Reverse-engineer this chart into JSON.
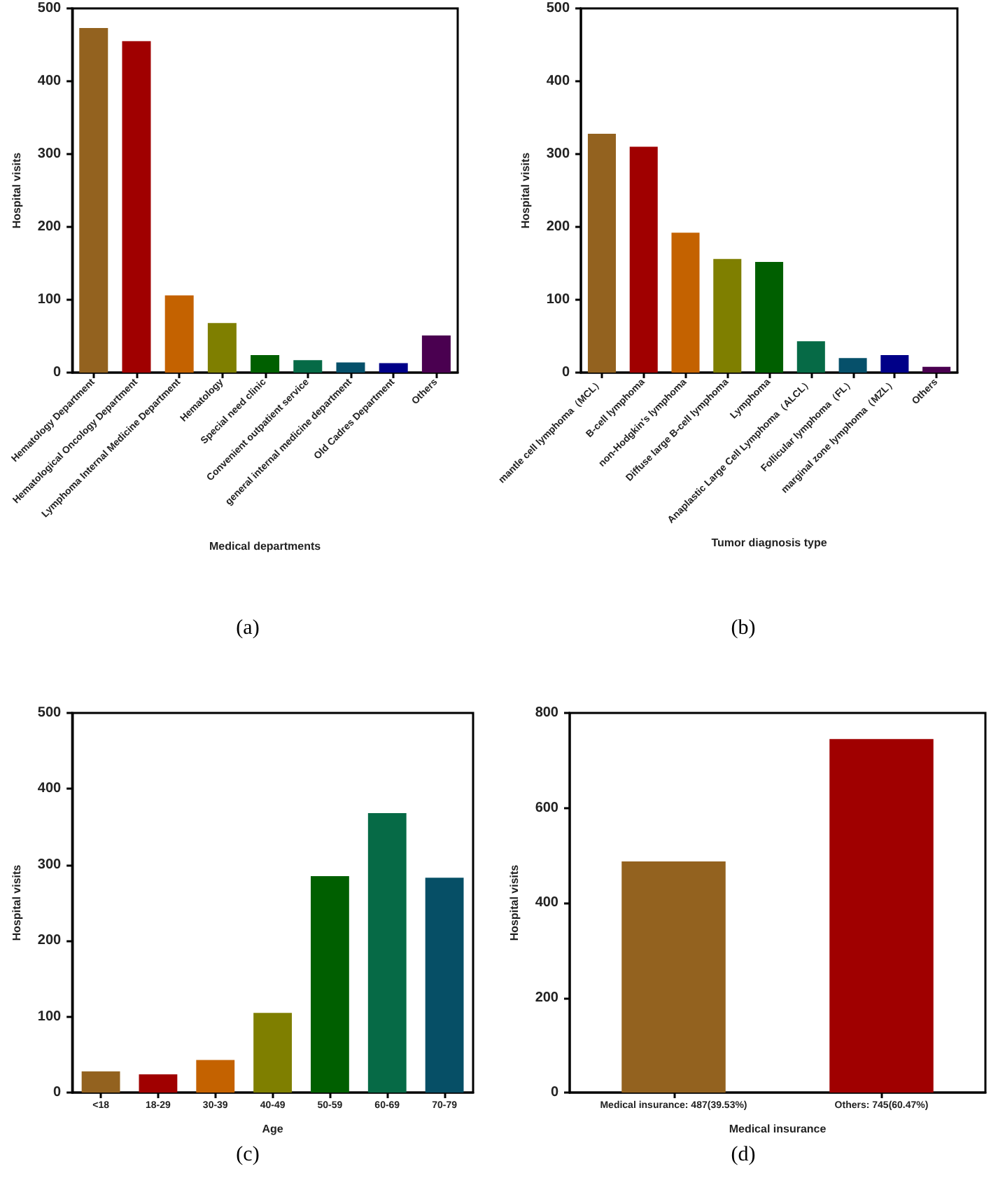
{
  "chart_data": [
    {
      "type": "bar",
      "xlabel": "Medical departments",
      "ylabel": "Hospital visits",
      "annotations": [
        "(a)"
      ],
      "categories": [
        "Hematology Department",
        "Hematological Oncology Department",
        "Lymphoma Internal Medicine Department",
        "Hematology",
        "Special need clinic",
        "Convenient outpatient service",
        "general internal medicine department",
        "Old Cadres Department",
        "Others"
      ],
      "values": [
        473,
        455,
        106,
        68,
        24,
        17,
        14,
        13,
        51
      ],
      "colors": [
        "#93621f",
        "#a00000",
        "#c46200",
        "#7f7f00",
        "#005f00",
        "#066a46",
        "#06506a",
        "#000088",
        "#4a0050"
      ],
      "ylim": [
        0,
        500
      ],
      "yticks": [
        0,
        100,
        200,
        300,
        400,
        500
      ],
      "grid": false
    },
    {
      "type": "bar",
      "xlabel": "Tumor diagnosis type",
      "ylabel": "Hospital visits",
      "annotations": [
        "(b)"
      ],
      "categories": [
        "mantle cell lymphoma（MCL）",
        "B-cell lymphoma",
        "non-Hodgkin's lymphoma",
        "Diffuse large B-cell lymphoma",
        "Lymphoma",
        "Anaplastic Large Cell Lymphoma（ALCL）",
        "Follicular lymphoma（FL）",
        "marginal zone lymphoma（MZL）",
        "Others"
      ],
      "values": [
        328,
        310,
        192,
        156,
        152,
        43,
        20,
        24,
        8
      ],
      "colors": [
        "#93621f",
        "#a00000",
        "#c46200",
        "#7f7f00",
        "#005f00",
        "#066a46",
        "#06506a",
        "#000088",
        "#4a0050"
      ],
      "ylim": [
        0,
        500
      ],
      "yticks": [
        0,
        100,
        200,
        300,
        400,
        500
      ],
      "grid": false
    },
    {
      "type": "bar",
      "xlabel": "Age",
      "ylabel": "Hospital visits",
      "annotations": [
        "(c)"
      ],
      "categories": [
        "<18",
        "18-29",
        "30-39",
        "40-49",
        "50-59",
        "60-69",
        "70-79"
      ],
      "values": [
        28,
        24,
        43,
        105,
        285,
        368,
        283
      ],
      "colors": [
        "#93621f",
        "#a00000",
        "#c46200",
        "#7f7f00",
        "#005f00",
        "#066a46",
        "#064f66"
      ],
      "ylim": [
        0,
        500
      ],
      "yticks": [
        0,
        100,
        200,
        300,
        400,
        500
      ],
      "grid": false
    },
    {
      "type": "bar",
      "xlabel": "Medical insurance",
      "ylabel": "Hospital visits",
      "annotations": [
        "(d)"
      ],
      "categories": [
        "Medical insurance: 487(39.53%)",
        "Others: 745(60.47%)"
      ],
      "values": [
        487,
        745
      ],
      "colors": [
        "#93621f",
        "#a00000"
      ],
      "ylim": [
        0,
        800
      ],
      "yticks": [
        0,
        200,
        400,
        600,
        800
      ],
      "grid": false
    }
  ]
}
